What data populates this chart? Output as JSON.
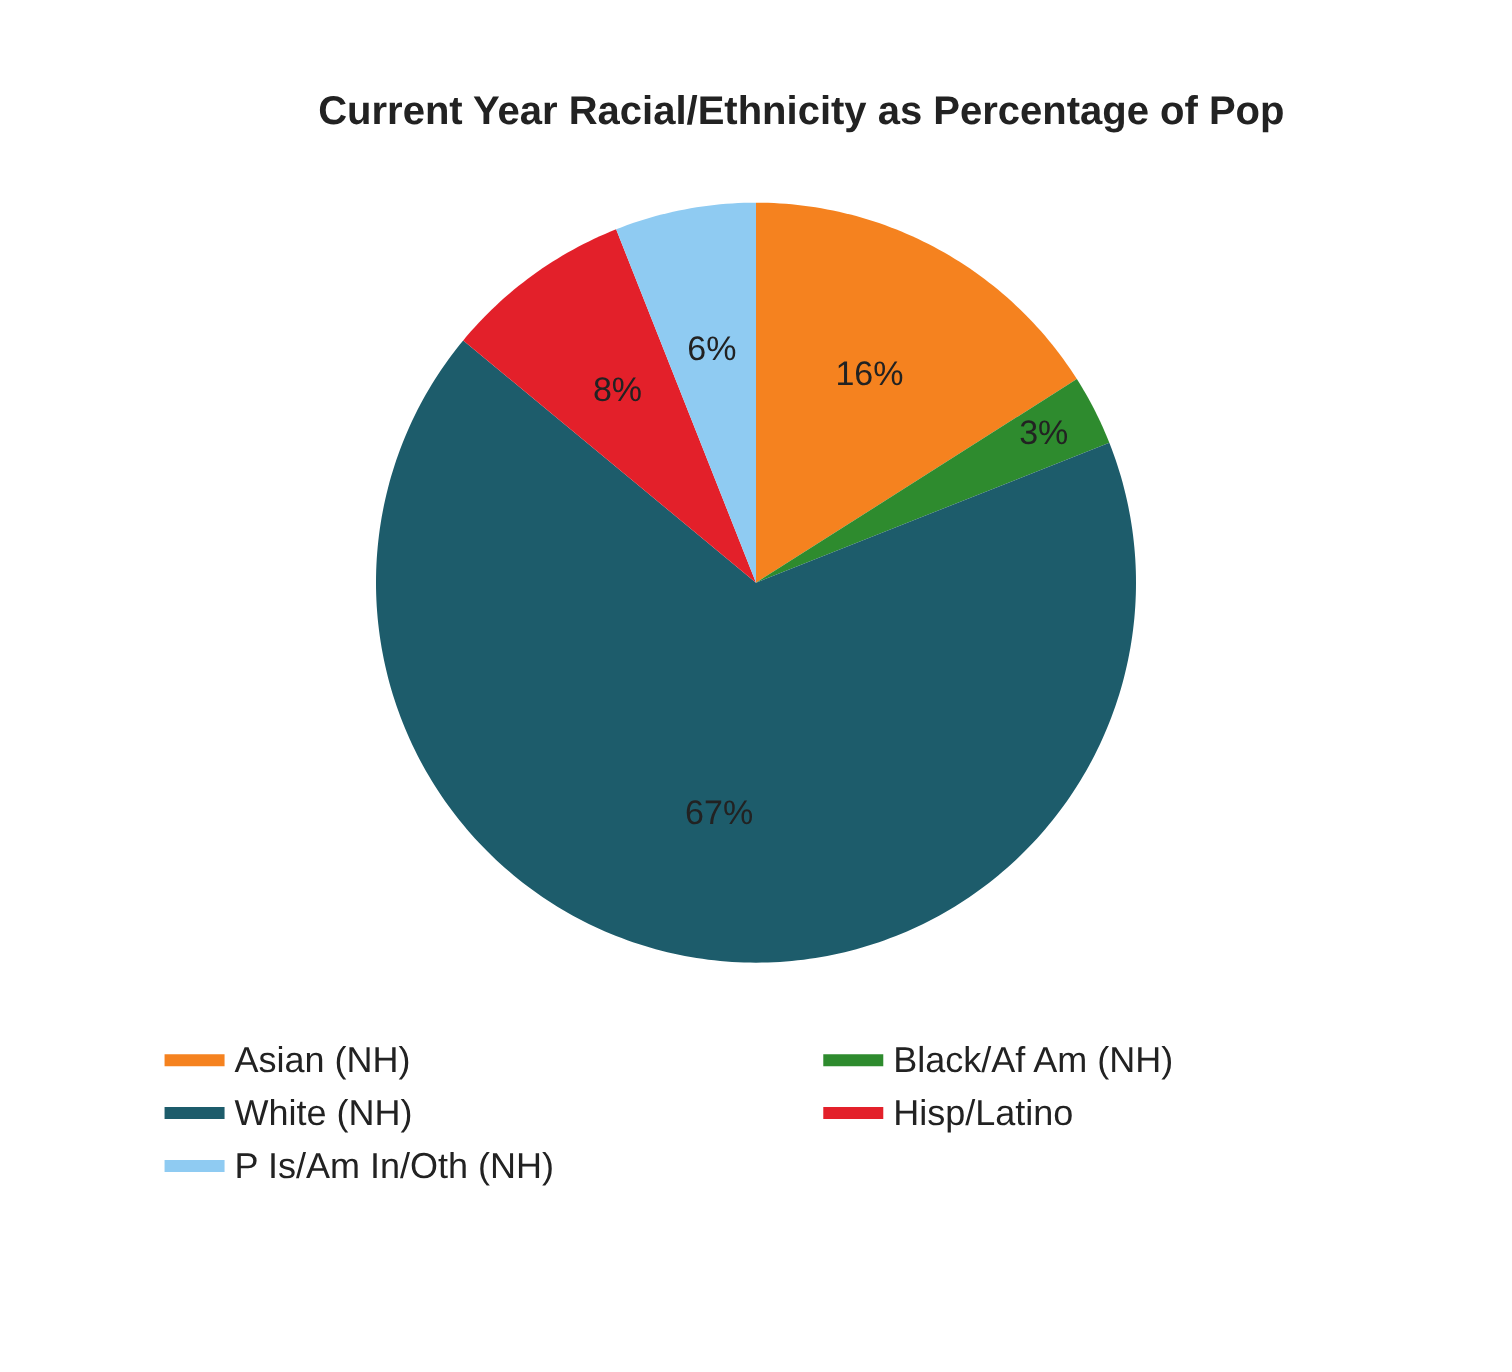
{
  "chart_data": {
    "type": "pie",
    "title": "Current Year Racial/Ethnicity as Percentage of Pop",
    "categories": [
      "Asian (NH)",
      "Black/Af Am (NH)",
      "White (NH)",
      "Hisp/Latino",
      "P Is/Am In/Oth (NH)"
    ],
    "values": [
      16,
      3,
      67,
      8,
      6
    ],
    "colors": [
      "#f5821f",
      "#2e8b2e",
      "#1d5c6b",
      "#e3202a",
      "#8fcbf2"
    ],
    "value_labels": [
      "16%",
      "3%",
      "67%",
      "8%",
      "6%"
    ],
    "legend": "bottom"
  }
}
